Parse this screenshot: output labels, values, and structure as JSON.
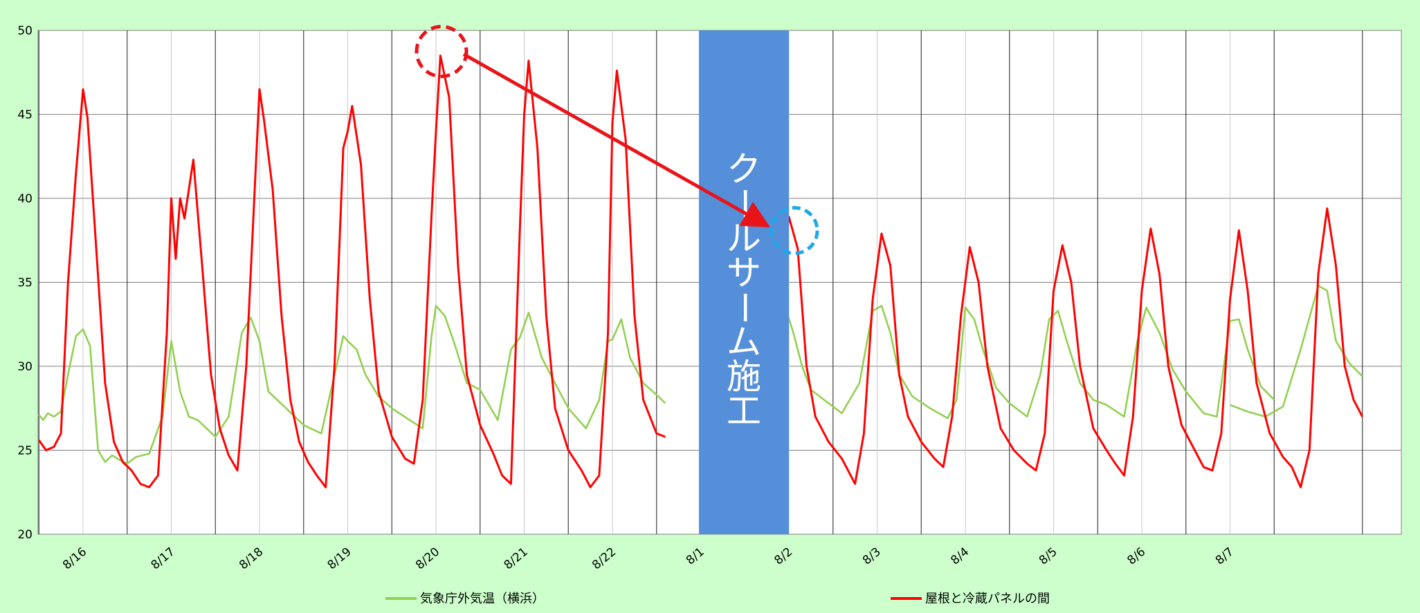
{
  "chart_data": {
    "type": "line",
    "title": "",
    "xlabel": "",
    "ylabel": "",
    "ylim": [
      20,
      50
    ],
    "yticks": [
      20,
      25,
      30,
      35,
      40,
      45,
      50
    ],
    "grid": true,
    "legend_position": "bottom",
    "categories": [
      "8/16",
      "8/17",
      "8/18",
      "8/19",
      "8/20",
      "8/21",
      "8/22",
      "8/1",
      "8/2",
      "8/3",
      "8/4",
      "8/5",
      "8/6",
      "8/7"
    ],
    "annotation": {
      "text": "クールサーム施工",
      "color": "#568fd9",
      "text_color": "#ffffff"
    },
    "highlight_before": {
      "day": "8/20",
      "value": 48.5,
      "color": "#e8141a"
    },
    "highlight_after": {
      "day": "8/2",
      "value": 38.0,
      "color": "#1fa8e8"
    },
    "colors": {
      "background": "#ccffcc",
      "plot_area": "#ffffff"
    },
    "series": [
      {
        "name": "気象庁外気温（横浜）",
        "color": "#92d050",
        "segments": [
          {
            "t": [
              -0.5,
              -0.45,
              -0.4,
              -0.33,
              -0.25,
              -0.17,
              -0.08,
              0,
              0.08,
              0.17,
              0.25,
              0.33,
              0.42,
              0.5,
              0.6,
              0.75,
              0.9,
              1.0,
              1.1,
              1.2,
              1.3,
              1.5,
              1.65,
              1.8,
              1.9,
              2.0,
              2.1,
              2.2,
              2.3,
              2.5,
              2.7,
              2.85,
              2.95,
              3.0,
              3.1,
              3.2,
              3.35,
              3.5,
              3.7,
              3.85,
              3.95,
              4.0,
              4.1,
              4.2,
              4.35,
              4.5,
              4.7,
              4.85,
              4.95,
              5.05,
              5.2,
              5.35,
              5.5,
              5.7,
              5.85,
              5.95,
              6.0,
              6.1,
              6.2,
              6.35,
              6.5,
              6.6
            ],
            "v": [
              27.1,
              26.8,
              27.2,
              27.0,
              27.3,
              29.5,
              31.8,
              32.2,
              31.2,
              25.0,
              24.3,
              24.7,
              24.4,
              24.2,
              24.6,
              24.8,
              27.0,
              31.5,
              28.5,
              27.0,
              26.8,
              25.8,
              27.0,
              32.0,
              32.9,
              31.5,
              28.5,
              28.0,
              27.5,
              26.5,
              26.0,
              29.5,
              31.8,
              31.5,
              31.0,
              29.5,
              28.2,
              27.5,
              26.8,
              26.3,
              31.8,
              33.6,
              33.0,
              31.5,
              29.0,
              28.6,
              26.8,
              31.0,
              31.7,
              33.2,
              30.5,
              29.0,
              27.5,
              26.3,
              28.0,
              31.5,
              31.6,
              32.8,
              30.5,
              29.0,
              28.3,
              27.8
            ]
          },
          {
            "t": [
              7.3,
              7.45,
              7.6,
              7.75,
              7.85,
              7.95,
              8.05,
              8.15,
              8.25,
              8.4,
              8.6,
              8.8,
              8.95,
              9.05,
              9.15,
              9.25,
              9.4,
              9.6,
              9.8,
              9.9,
              10.0,
              10.1,
              10.2,
              10.35,
              10.5,
              10.7,
              10.85,
              10.95,
              11.05,
              11.15,
              11.3,
              11.45,
              11.6,
              11.8,
              11.95,
              12.05,
              12.2,
              12.35,
              12.5,
              12.7,
              12.85,
              13.0,
              13.1,
              13.2,
              13.35,
              13.5
            ],
            "v": [
              27.5,
              27.0,
              27.3,
              31.0,
              33.8,
              33.7,
              32.0,
              30.0,
              28.6,
              28.0,
              27.2,
              29.0,
              33.3,
              33.6,
              32.0,
              29.5,
              28.2,
              27.5,
              26.9,
              28.0,
              33.5,
              32.8,
              31.0,
              28.7,
              27.8,
              27.0,
              29.5,
              32.8,
              33.3,
              31.5,
              29.0,
              28.0,
              27.7,
              27.0,
              31.5,
              33.5,
              32.0,
              29.8,
              28.5,
              27.2,
              27.0,
              32.7,
              32.8,
              31.0,
              28.8,
              28.0
            ]
          },
          {
            "t": [
              13.0,
              13.2,
              13.4,
              13.6,
              13.8,
              14.0,
              14.1,
              14.2,
              14.35,
              14.5
            ],
            "v": [
              27.7,
              27.3,
              27.0,
              27.6,
              31.0,
              34.8,
              34.5,
              31.5,
              30.2,
              29.4
            ]
          }
        ]
      },
      {
        "name": "屋根と冷蔵パネルの間",
        "color": "#ff0000",
        "segments": [
          {
            "t": [
              -0.5,
              -0.42,
              -0.33,
              -0.25,
              -0.17,
              -0.08,
              0,
              0.05,
              0.15,
              0.25,
              0.35,
              0.45,
              0.55,
              0.65,
              0.75,
              0.85,
              0.95,
              1.0,
              1.05,
              1.1,
              1.15,
              1.25,
              1.35,
              1.45,
              1.55,
              1.65,
              1.75,
              1.85,
              1.95,
              2.0,
              2.05,
              2.15,
              2.25,
              2.35,
              2.45,
              2.55,
              2.65,
              2.75,
              2.85,
              2.95,
              3.0,
              3.05,
              3.15,
              3.25,
              3.35,
              3.5,
              3.65,
              3.75,
              3.85,
              3.95,
              4.0,
              4.05,
              4.15,
              4.25,
              4.35,
              4.5,
              4.65,
              4.75,
              4.85,
              4.95,
              5.0,
              5.05,
              5.15,
              5.25,
              5.35,
              5.5,
              5.65,
              5.75,
              5.85,
              5.95,
              6.0,
              6.05,
              6.15,
              6.25,
              6.35,
              6.5,
              6.6
            ],
            "v": [
              25.6,
              25.0,
              25.2,
              26.0,
              35.0,
              41.5,
              46.5,
              44.8,
              37.0,
              29.0,
              25.5,
              24.3,
              23.8,
              23.0,
              22.8,
              23.5,
              32.0,
              40.0,
              36.4,
              40.0,
              38.8,
              42.3,
              36.0,
              29.5,
              26.3,
              24.7,
              23.8,
              30.0,
              41.0,
              46.5,
              44.7,
              40.5,
              33.0,
              28.0,
              25.5,
              24.3,
              23.5,
              22.8,
              30.0,
              43.0,
              44.0,
              45.5,
              42.0,
              34.0,
              28.5,
              25.8,
              24.5,
              24.2,
              28.0,
              39.0,
              44.0,
              48.5,
              46.0,
              36.0,
              29.5,
              26.5,
              24.8,
              23.5,
              23.0,
              38.0,
              45.0,
              48.2,
              43.0,
              33.0,
              27.5,
              25.0,
              23.8,
              22.8,
              23.5,
              32.0,
              44.5,
              47.6,
              43.5,
              33.0,
              28.0,
              26.0,
              25.8
            ]
          },
          {
            "t": [
              7.4,
              7.5,
              7.6,
              7.7,
              7.8,
              7.9,
              8.0,
              8.1,
              8.2,
              8.3,
              8.45,
              8.6,
              8.75,
              8.85,
              8.95,
              9.05,
              9.15,
              9.25,
              9.35,
              9.5,
              9.65,
              9.75,
              9.85,
              9.95,
              10.05,
              10.15,
              10.25,
              10.4,
              10.55,
              10.7,
              10.8,
              10.9,
              11.0,
              11.1,
              11.2,
              11.3,
              11.45,
              11.6,
              11.7,
              11.8,
              11.9,
              12.0,
              12.1,
              12.2,
              12.3,
              12.45,
              12.6,
              12.7,
              12.8,
              12.9,
              13.0,
              13.1,
              13.2,
              13.3,
              13.45,
              13.6,
              13.7,
              13.8,
              13.9,
              14.0,
              14.1,
              14.2,
              14.3,
              14.4,
              14.5
            ],
            "v": [
              25.6,
              24.9,
              24.8,
              25.7,
              29.5,
              35.0,
              38.9,
              37.0,
              30.0,
              27.0,
              25.5,
              24.5,
              23.0,
              26.0,
              34.0,
              37.9,
              36.0,
              29.5,
              27.0,
              25.5,
              24.5,
              24.0,
              27.0,
              33.0,
              37.1,
              35.0,
              30.0,
              26.3,
              25.0,
              24.2,
              23.8,
              26.0,
              34.5,
              37.2,
              35.0,
              30.0,
              26.3,
              25.0,
              24.2,
              23.5,
              27.0,
              34.5,
              38.2,
              35.5,
              30.0,
              26.5,
              25.0,
              24.0,
              23.8,
              26.0,
              34.0,
              38.1,
              34.5,
              29.0,
              26.0,
              24.6,
              24.0,
              22.8,
              25.0,
              35.5,
              39.4,
              36.0,
              30.0,
              28.0,
              27.0
            ]
          }
        ]
      }
    ]
  }
}
